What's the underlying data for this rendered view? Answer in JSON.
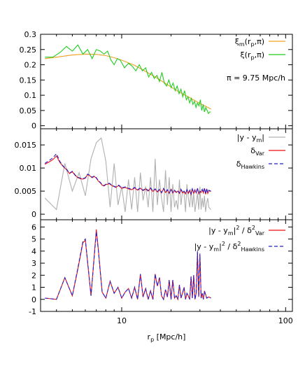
{
  "chart_data": [
    {
      "type": "line",
      "xscale": "log",
      "xlim": [
        3.2,
        110
      ],
      "ylim": [
        -0.01,
        0.3
      ],
      "yticks": [
        "0",
        "0.05",
        "0.1",
        "0.15",
        "0.2",
        "0.25",
        "0.3"
      ],
      "yticks_values": [
        0,
        0.05,
        0.1,
        0.15,
        0.2,
        0.25,
        0.3
      ],
      "annotation": "π = 9.75 Mpc/h",
      "legend_position": "top-right",
      "series": [
        {
          "name": "ξm(rp,π)",
          "legend_main": "ξ",
          "legend_sub": "m",
          "legend_rest": "(r",
          "legend_sub2": "p",
          "legend_tail": ",π)",
          "color": "#f0a020",
          "x": [
            3.4,
            4.0,
            5.0,
            6.0,
            7.0,
            8.0,
            9.0,
            10.0,
            12.0,
            14.0,
            16.0,
            18.0,
            20.0,
            22.0,
            25.0,
            28.0,
            30.0,
            33.0,
            35.0
          ],
          "y": [
            0.22,
            0.225,
            0.232,
            0.235,
            0.234,
            0.23,
            0.223,
            0.215,
            0.198,
            0.178,
            0.16,
            0.143,
            0.127,
            0.113,
            0.097,
            0.082,
            0.073,
            0.062,
            0.055
          ]
        },
        {
          "name": "ξ(rp,π)",
          "legend_main": "ξ",
          "legend_sub": "",
          "legend_rest": "(r",
          "legend_sub2": "p",
          "legend_tail": ",π)",
          "color": "#22cc22",
          "x": [
            3.4,
            3.8,
            4.2,
            4.6,
            5.0,
            5.4,
            5.8,
            6.2,
            6.6,
            7.0,
            7.4,
            7.8,
            8.2,
            8.6,
            9.0,
            9.4,
            9.8,
            10.4,
            11.0,
            11.6,
            12.2,
            12.8,
            13.4,
            14.0,
            14.6,
            15.2,
            15.8,
            16.4,
            17.0,
            17.6,
            18.2,
            18.8,
            19.4,
            20.0,
            20.6,
            21.2,
            21.8,
            22.4,
            23.0,
            23.6,
            24.2,
            24.8,
            25.4,
            26.0,
            26.6,
            27.2,
            27.8,
            28.4,
            29.0,
            29.6,
            30.2,
            30.8,
            31.4,
            32.0,
            32.6,
            33.2,
            33.8,
            34.4,
            35.0
          ],
          "y": [
            0.225,
            0.225,
            0.24,
            0.26,
            0.245,
            0.265,
            0.235,
            0.25,
            0.22,
            0.25,
            0.245,
            0.235,
            0.245,
            0.215,
            0.2,
            0.22,
            0.215,
            0.19,
            0.205,
            0.195,
            0.18,
            0.2,
            0.18,
            0.19,
            0.16,
            0.175,
            0.155,
            0.165,
            0.145,
            0.175,
            0.14,
            0.13,
            0.15,
            0.125,
            0.14,
            0.115,
            0.13,
            0.105,
            0.12,
            0.095,
            0.115,
            0.085,
            0.095,
            0.075,
            0.09,
            0.07,
            0.08,
            0.06,
            0.075,
            0.065,
            0.085,
            0.05,
            0.07,
            0.045,
            0.06,
            0.05,
            0.04,
            0.045,
            0.045
          ]
        }
      ]
    },
    {
      "type": "line",
      "xscale": "log",
      "xlim": [
        3.2,
        110
      ],
      "ylim": [
        -0.0012,
        0.0185
      ],
      "yticks": [
        "0",
        "0.005",
        "0.01",
        "0.015"
      ],
      "yticks_values": [
        0,
        0.005,
        0.01,
        0.015
      ],
      "legend_position": "top-right",
      "series": [
        {
          "name": "|y - ym|",
          "legend_main": "|y - y",
          "legend_sub": "m",
          "legend_tail": "|",
          "color": "#b0b0b0",
          "dash": false,
          "x": [
            3.4,
            4.0,
            4.5,
            5.0,
            5.5,
            6.0,
            6.5,
            7.0,
            7.5,
            8.0,
            8.5,
            9.0,
            9.5,
            10.0,
            10.5,
            11.0,
            11.5,
            12.0,
            12.5,
            13.0,
            13.5,
            14.0,
            14.5,
            15.0,
            15.5,
            16.0,
            16.5,
            17.0,
            17.5,
            18.0,
            18.5,
            19.0,
            19.5,
            20.0,
            20.5,
            21.0,
            21.5,
            22.0,
            22.5,
            23.0,
            23.5,
            24.0,
            24.5,
            25.0,
            25.5,
            26.0,
            26.5,
            27.0,
            27.5,
            28.0,
            28.5,
            29.0,
            29.5,
            30.0,
            30.5,
            31.0,
            31.5,
            32.0,
            32.5,
            33.0,
            33.5,
            34.0,
            35.0
          ],
          "y": [
            0.0035,
            0.001,
            0.011,
            0.005,
            0.009,
            0.004,
            0.012,
            0.0155,
            0.0165,
            0.0115,
            0.0015,
            0.011,
            0.002,
            0.006,
            0.0005,
            0.0075,
            0.001,
            0.008,
            0.0005,
            0.009,
            0.003,
            0.006,
            0.0015,
            0.008,
            0.0005,
            0.012,
            0.002,
            0.0075,
            0.0035,
            0.0005,
            0.0095,
            0.002,
            0.008,
            0.0005,
            0.0065,
            0.0015,
            0.003,
            0.001,
            0.0075,
            0.002,
            0.005,
            0.0045,
            0.0005,
            0.0065,
            0.0035,
            0.0015,
            0.0055,
            0.0015,
            0.0045,
            0.0005,
            0.0025,
            0.0045,
            0.001,
            0.006,
            0.001,
            0.0035,
            0.0015,
            0.004,
            0.0005,
            0.0025,
            0.0035,
            0.0015,
            0.001
          ]
        },
        {
          "name": "δVar",
          "legend_main": "δ",
          "legend_sub": "Var",
          "legend_tail": "",
          "color": "#ee1111",
          "dash": false,
          "x": [
            3.4,
            3.6,
            3.8,
            4.0,
            4.2,
            4.4,
            4.6,
            4.8,
            5.0,
            5.2,
            5.4,
            5.6,
            5.8,
            6.0,
            6.2,
            6.4,
            6.6,
            6.8,
            7.0,
            7.2,
            7.4,
            7.6,
            7.8,
            8.0,
            8.4,
            8.8,
            9.2,
            9.6,
            10.0,
            10.5,
            11.0,
            11.5,
            12.0,
            12.5,
            13.0,
            13.5,
            14.0,
            14.5,
            15.0,
            15.5,
            16.0,
            16.5,
            17.0,
            17.5,
            18.0,
            18.5,
            19.0,
            19.5,
            20.0,
            20.5,
            21.0,
            21.5,
            22.0,
            22.5,
            23.0,
            23.5,
            24.0,
            24.5,
            25.0,
            25.5,
            26.0,
            26.5,
            27.0,
            27.5,
            28.0,
            28.5,
            29.0,
            29.5,
            30.0,
            30.5,
            31.0,
            31.5,
            32.0,
            32.5,
            33.0,
            33.5,
            34.0,
            35.0
          ],
          "y": [
            0.0108,
            0.0113,
            0.0118,
            0.0126,
            0.0112,
            0.0103,
            0.0097,
            0.0088,
            0.0092,
            0.0084,
            0.0079,
            0.0077,
            0.0076,
            0.0078,
            0.0086,
            0.0083,
            0.0079,
            0.0082,
            0.0078,
            0.0072,
            0.0068,
            0.0063,
            0.0061,
            0.0064,
            0.0066,
            0.0061,
            0.0058,
            0.0062,
            0.0056,
            0.0058,
            0.0055,
            0.0053,
            0.0057,
            0.0052,
            0.0056,
            0.0051,
            0.0055,
            0.005,
            0.0056,
            0.0049,
            0.0054,
            0.0048,
            0.0053,
            0.0046,
            0.0055,
            0.0047,
            0.0052,
            0.0045,
            0.0054,
            0.0046,
            0.0051,
            0.0047,
            0.005,
            0.0045,
            0.0053,
            0.0046,
            0.0049,
            0.0044,
            0.0052,
            0.0045,
            0.0051,
            0.0043,
            0.0054,
            0.0045,
            0.0052,
            0.0046,
            0.0056,
            0.0044,
            0.0049,
            0.0047,
            0.0053,
            0.0046,
            0.0056,
            0.0043,
            0.0055,
            0.0045,
            0.0051,
            0.0049
          ]
        },
        {
          "name": "δHawkins",
          "legend_main": "δ",
          "legend_sub": "Hawkins",
          "legend_tail": "",
          "color": "#2222cc",
          "dash": true,
          "x": [
            3.4,
            3.6,
            3.8,
            4.0,
            4.2,
            4.4,
            4.6,
            4.8,
            5.0,
            5.2,
            5.4,
            5.6,
            5.8,
            6.0,
            6.2,
            6.4,
            6.6,
            6.8,
            7.0,
            7.2,
            7.4,
            7.6,
            7.8,
            8.0,
            8.4,
            8.8,
            9.2,
            9.6,
            10.0,
            10.5,
            11.0,
            11.5,
            12.0,
            12.5,
            13.0,
            13.5,
            14.0,
            14.5,
            15.0,
            15.5,
            16.0,
            16.5,
            17.0,
            17.5,
            18.0,
            18.5,
            19.0,
            19.5,
            20.0,
            20.5,
            21.0,
            21.5,
            22.0,
            22.5,
            23.0,
            23.5,
            24.0,
            24.5,
            25.0,
            25.5,
            26.0,
            26.5,
            27.0,
            27.5,
            28.0,
            28.5,
            29.0,
            29.5,
            30.0,
            30.5,
            31.0,
            31.5,
            32.0,
            32.5,
            33.0,
            33.5,
            34.0,
            35.0
          ],
          "y": [
            0.011,
            0.0116,
            0.0122,
            0.0131,
            0.0114,
            0.0104,
            0.0098,
            0.0089,
            0.0093,
            0.0085,
            0.008,
            0.0078,
            0.0077,
            0.0079,
            0.0087,
            0.0084,
            0.008,
            0.0083,
            0.0079,
            0.0073,
            0.0069,
            0.0064,
            0.0062,
            0.0065,
            0.0067,
            0.0062,
            0.0059,
            0.0063,
            0.0057,
            0.0059,
            0.0056,
            0.0054,
            0.0058,
            0.0053,
            0.0057,
            0.0052,
            0.0056,
            0.0051,
            0.0057,
            0.005,
            0.0055,
            0.0049,
            0.0054,
            0.0047,
            0.0056,
            0.0048,
            0.0053,
            0.0046,
            0.0055,
            0.0047,
            0.0052,
            0.0048,
            0.0051,
            0.0046,
            0.0054,
            0.0047,
            0.005,
            0.0045,
            0.0053,
            0.0046,
            0.0052,
            0.0044,
            0.0055,
            0.0046,
            0.0053,
            0.0047,
            0.0057,
            0.0045,
            0.005,
            0.0048,
            0.0054,
            0.0047,
            0.0057,
            0.0044,
            0.0056,
            0.0046,
            0.0052,
            0.005
          ]
        }
      ]
    },
    {
      "type": "line",
      "xscale": "log",
      "xlim": [
        3.2,
        110
      ],
      "ylim": [
        -1,
        6.6
      ],
      "yticks": [
        "-1",
        "0",
        "1",
        "2",
        "3",
        "4",
        "5",
        "6"
      ],
      "yticks_values": [
        -1,
        0,
        1,
        2,
        3,
        4,
        5,
        6
      ],
      "xticks": [
        "10",
        "100"
      ],
      "xticks_values": [
        10,
        100
      ],
      "xlabel": "rp [Mpc/h]",
      "xlabel_main": "r",
      "xlabel_sub": "p",
      "xlabel_rest": " [Mpc/h]",
      "legend_position": "top-right",
      "series": [
        {
          "name": "|y - ym|2 / δ2Var",
          "legend_a": "|y - y",
          "legend_a_sub": "m",
          "legend_b": "|",
          "legend_b_sup": "2",
          "legend_c": " / δ",
          "legend_c_sup": "2",
          "legend_c_sub": "Var",
          "color": "#ee1111",
          "dash": false,
          "x": [
            3.4,
            4.0,
            4.5,
            5.0,
            5.4,
            5.8,
            6.0,
            6.5,
            7.0,
            7.2,
            7.6,
            8.0,
            8.5,
            9.0,
            9.5,
            10.0,
            10.5,
            11.0,
            11.5,
            12.0,
            12.5,
            13.0,
            13.5,
            14.0,
            14.5,
            15.0,
            15.5,
            16.0,
            16.5,
            17.0,
            17.5,
            18.0,
            18.5,
            19.0,
            19.5,
            20.0,
            20.5,
            21.0,
            21.5,
            22.0,
            22.5,
            23.0,
            23.5,
            24.0,
            24.5,
            25.0,
            25.5,
            26.0,
            26.5,
            27.0,
            27.5,
            28.0,
            28.5,
            29.0,
            29.5,
            30.0,
            30.5,
            31.0,
            31.5,
            32.0,
            33.0,
            34.0,
            35.0
          ],
          "y": [
            0.1,
            0.0,
            1.8,
            0.3,
            2.5,
            4.7,
            4.9,
            0.3,
            5.8,
            4.2,
            0.6,
            0.1,
            1.5,
            0.5,
            1.0,
            0.1,
            0.6,
            0.9,
            0.1,
            1.0,
            0.0,
            2.1,
            0.2,
            0.9,
            0.0,
            0.7,
            0.0,
            2.1,
            1.1,
            1.8,
            0.3,
            0.0,
            0.8,
            0.2,
            1.6,
            0.0,
            1.6,
            0.1,
            0.3,
            0.0,
            1.2,
            0.1,
            0.5,
            1.0,
            0.0,
            0.5,
            0.3,
            0.0,
            1.9,
            0.1,
            2.0,
            0.0,
            0.5,
            3.9,
            0.2,
            3.7,
            0.1,
            0.5,
            0.0,
            0.7,
            0.1,
            0.2,
            0.1
          ]
        },
        {
          "name": "|y - ym|2 / δ2Hawkins",
          "legend_a": "|y - y",
          "legend_a_sub": "m",
          "legend_b": "|",
          "legend_b_sup": "2",
          "legend_c": " / δ",
          "legend_c_sup": "2",
          "legend_c_sub": "Hawkins",
          "color": "#2222cc",
          "dash": true,
          "x": [
            3.4,
            4.0,
            4.5,
            5.0,
            5.4,
            5.8,
            6.0,
            6.5,
            7.0,
            7.2,
            7.6,
            8.0,
            8.5,
            9.0,
            9.5,
            10.0,
            10.5,
            11.0,
            11.5,
            12.0,
            12.5,
            13.0,
            13.5,
            14.0,
            14.5,
            15.0,
            15.5,
            16.0,
            16.5,
            17.0,
            17.5,
            18.0,
            18.5,
            19.0,
            19.5,
            20.0,
            20.5,
            21.0,
            21.5,
            22.0,
            22.5,
            23.0,
            23.5,
            24.0,
            24.5,
            25.0,
            25.5,
            26.0,
            26.5,
            27.0,
            27.5,
            28.0,
            28.5,
            29.0,
            29.5,
            30.0,
            30.5,
            31.0,
            31.5,
            32.0,
            33.0,
            34.0,
            35.0
          ],
          "y": [
            0.1,
            0.0,
            1.8,
            0.3,
            2.6,
            4.8,
            5.0,
            0.3,
            5.6,
            4.1,
            0.6,
            0.1,
            1.5,
            0.5,
            1.0,
            0.1,
            0.6,
            0.9,
            0.1,
            1.0,
            0.0,
            2.1,
            0.2,
            0.9,
            0.0,
            0.7,
            0.0,
            2.1,
            1.1,
            1.8,
            0.3,
            0.0,
            0.8,
            0.2,
            1.6,
            0.0,
            1.6,
            0.1,
            0.3,
            0.0,
            1.2,
            0.1,
            0.5,
            1.0,
            0.0,
            0.5,
            0.3,
            0.0,
            1.9,
            0.1,
            2.0,
            0.0,
            0.5,
            4.0,
            0.2,
            3.8,
            0.1,
            0.5,
            0.0,
            0.7,
            0.1,
            0.2,
            0.1
          ]
        }
      ]
    }
  ]
}
